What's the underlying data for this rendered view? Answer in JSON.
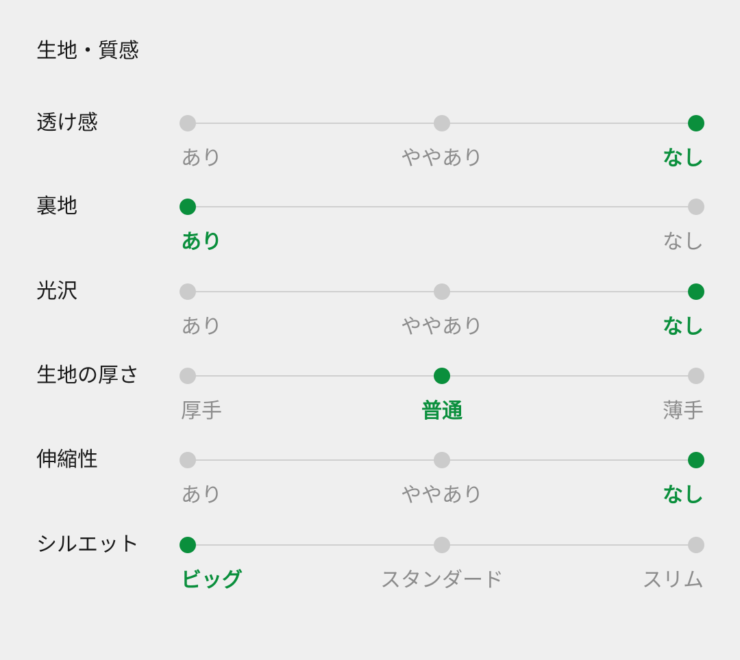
{
  "title": "生地・質感",
  "colors": {
    "active": "#0a8f3c",
    "inactive_dot": "#cbcbcb",
    "inactive_text": "#8c8c8c",
    "background": "#efefef"
  },
  "rows": [
    {
      "label": "透け感",
      "options": [
        "あり",
        "ややあり",
        "なし"
      ],
      "selected": 2
    },
    {
      "label": "裏地",
      "options": [
        "あり",
        "なし"
      ],
      "selected": 0
    },
    {
      "label": "光沢",
      "options": [
        "あり",
        "ややあり",
        "なし"
      ],
      "selected": 2
    },
    {
      "label": "生地の厚さ",
      "options": [
        "厚手",
        "普通",
        "薄手"
      ],
      "selected": 1
    },
    {
      "label": "伸縮性",
      "options": [
        "あり",
        "ややあり",
        "なし"
      ],
      "selected": 2
    },
    {
      "label": "シルエット",
      "options": [
        "ビッグ",
        "スタンダード",
        "スリム"
      ],
      "selected": 0
    }
  ]
}
